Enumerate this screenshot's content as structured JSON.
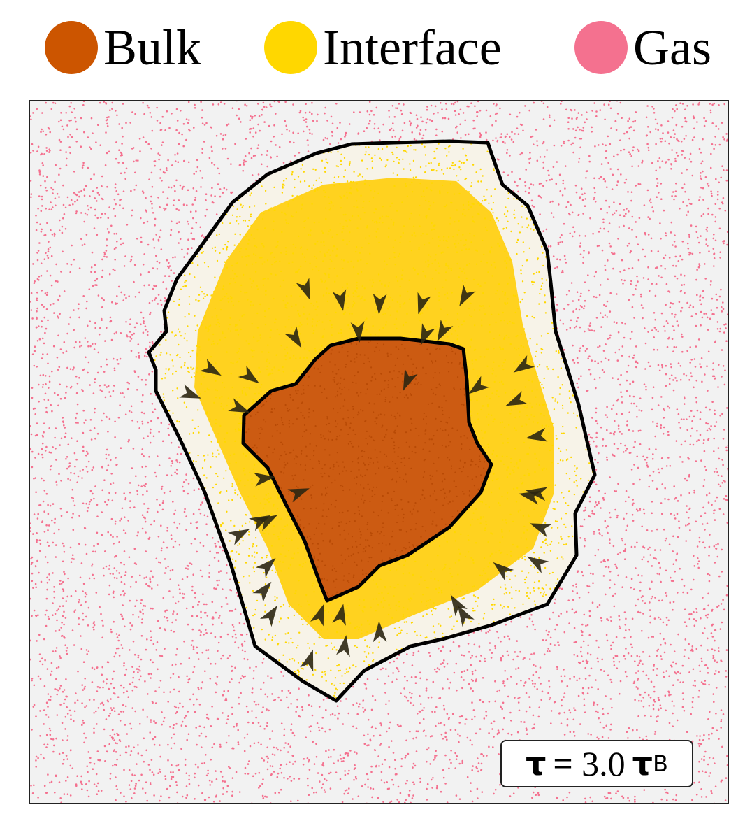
{
  "legend": {
    "items": [
      {
        "id": "bulk",
        "label": "Bulk",
        "color": "#cc5500"
      },
      {
        "id": "interface",
        "label": "Interface",
        "color": "#ffd700"
      },
      {
        "id": "gas",
        "label": "Gas",
        "color": "#f4718f"
      }
    ]
  },
  "time_label": {
    "symbol": "τ",
    "equals": "= 3.0",
    "unit_symbol": "τ",
    "unit_subscript": "B"
  },
  "colors": {
    "background": "#f2f2f2",
    "gas": "#f4718f",
    "interface": "#ffd700",
    "interface_dense": "#ffd21f",
    "bulk": "#cc5500",
    "contour": "#000000",
    "arrow": "#2b2612"
  },
  "icons": [
    "inward-arrow-icon"
  ]
}
